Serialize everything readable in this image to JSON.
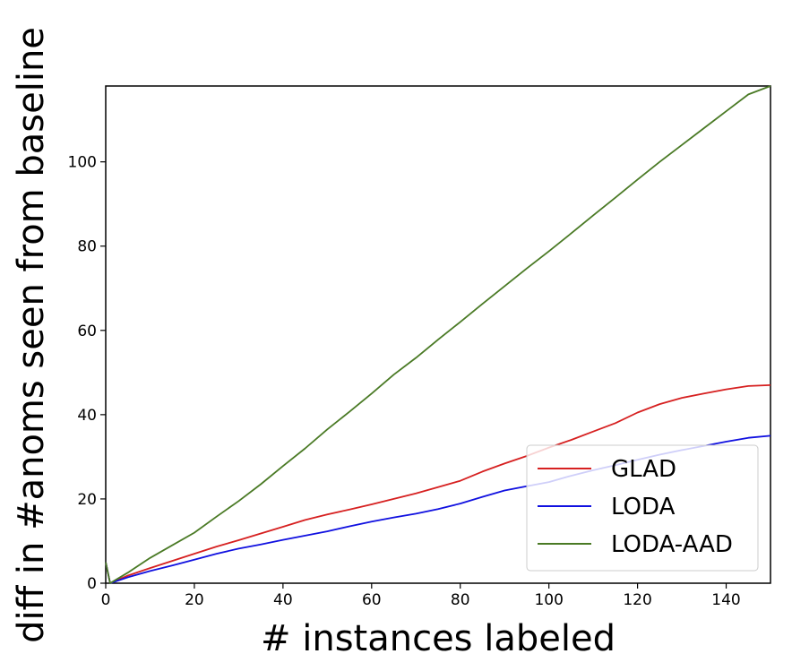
{
  "chart_data": {
    "type": "line",
    "title": "",
    "xlabel": "# instances labeled",
    "ylabel": "diff in #anoms seen from baseline",
    "xlim": [
      0,
      150
    ],
    "ylim": [
      0,
      118
    ],
    "xticks": [
      0,
      20,
      40,
      60,
      80,
      100,
      120,
      140
    ],
    "yticks": [
      0,
      20,
      40,
      60,
      80,
      100
    ],
    "grid": false,
    "legend_position": "lower-right",
    "series": [
      {
        "name": "GLAD",
        "color": "#d62020",
        "x": [
          0,
          1,
          5,
          10,
          15,
          20,
          25,
          30,
          35,
          40,
          45,
          50,
          55,
          60,
          65,
          70,
          75,
          80,
          85,
          90,
          95,
          100,
          105,
          110,
          115,
          120,
          125,
          130,
          135,
          140,
          145,
          150
        ],
        "y": [
          5,
          0,
          1.8,
          3.6,
          5.3,
          7,
          8.7,
          10.2,
          11.8,
          13.4,
          15,
          16.3,
          17.5,
          18.7,
          20,
          21.3,
          22.8,
          24.3,
          26.5,
          28.4,
          30.2,
          32.2,
          34,
          36,
          38,
          40.5,
          42.5,
          44,
          45,
          46,
          46.8,
          47
        ]
      },
      {
        "name": "LODA",
        "color": "#1010e0",
        "x": [
          0,
          1,
          5,
          10,
          15,
          20,
          25,
          30,
          35,
          40,
          45,
          50,
          55,
          60,
          65,
          70,
          75,
          80,
          85,
          90,
          95,
          100,
          105,
          110,
          115,
          120,
          125,
          130,
          135,
          140,
          145,
          150
        ],
        "y": [
          5,
          0,
          1.4,
          2.9,
          4.2,
          5.6,
          7,
          8.2,
          9.2,
          10.3,
          11.3,
          12.3,
          13.5,
          14.6,
          15.6,
          16.5,
          17.6,
          18.9,
          20.5,
          22,
          23,
          24,
          25.5,
          26.8,
          28,
          29.3,
          30.5,
          31.6,
          32.6,
          33.6,
          34.5,
          35
        ]
      },
      {
        "name": "LODA-AAD",
        "color": "#4a7a25",
        "x": [
          0,
          1,
          5,
          10,
          15,
          20,
          25,
          30,
          35,
          40,
          45,
          50,
          55,
          60,
          65,
          70,
          75,
          80,
          85,
          90,
          95,
          100,
          105,
          110,
          115,
          120,
          125,
          130,
          135,
          140,
          145,
          150
        ],
        "y": [
          5,
          0,
          2.5,
          6,
          9,
          12,
          15.8,
          19.5,
          23.5,
          27.8,
          32,
          36.5,
          40.7,
          45,
          49.5,
          53.5,
          57.8,
          62,
          66.3,
          70.5,
          74.7,
          78.8,
          83,
          87.3,
          91.5,
          95.8,
          100,
          104,
          108,
          112,
          116,
          118
        ]
      }
    ]
  }
}
